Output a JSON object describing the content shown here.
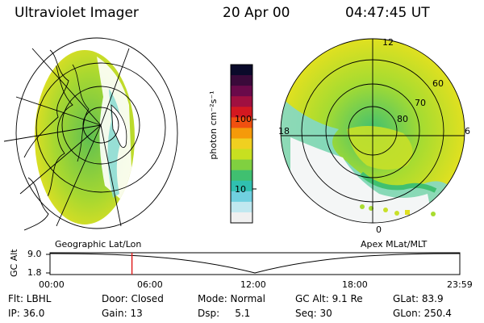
{
  "header": {
    "instrument": "Ultraviolet Imager",
    "date": "20 Apr 00",
    "time": "04:47:45 UT"
  },
  "geo_panel": {
    "label": "Geographic Lat/Lon"
  },
  "apex_panel": {
    "label": "Apex MLat/MLT",
    "mlt_labels": [
      "12",
      "18",
      "6",
      "0"
    ],
    "mlat_labels": [
      "60",
      "70",
      "80"
    ]
  },
  "colorbar": {
    "unit": "photon cm⁻²s⁻¹",
    "ticks": [
      "100",
      "10"
    ],
    "colors": [
      "#0a0a2a",
      "#3a0a3a",
      "#6a0a4a",
      "#a01040",
      "#d41820",
      "#f05010",
      "#f59a0a",
      "#f0d020",
      "#c8e020",
      "#80d040",
      "#40c070",
      "#30c0b0",
      "#70d0e0",
      "#c0e8f0",
      "#f0f0f0"
    ]
  },
  "timeline": {
    "y_label": "GC Alt",
    "y_ticks": [
      "9.0",
      "1.8"
    ],
    "x_ticks": [
      "00:00",
      "06:00",
      "12:00",
      "18:00",
      "23:59"
    ],
    "marker_time": "04:47:45",
    "marker_color": "#e02020"
  },
  "footer": {
    "row1": [
      "Flt: LBHL",
      "Door: Closed",
      "Mode: Normal",
      "GC Alt: 9.1 Re",
      "GLat:  83.9"
    ],
    "row2": [
      "IP: 36.0",
      "Gain: 13",
      "Dsp:     5.1",
      "Seq: 30",
      "GLon: 250.4"
    ]
  }
}
